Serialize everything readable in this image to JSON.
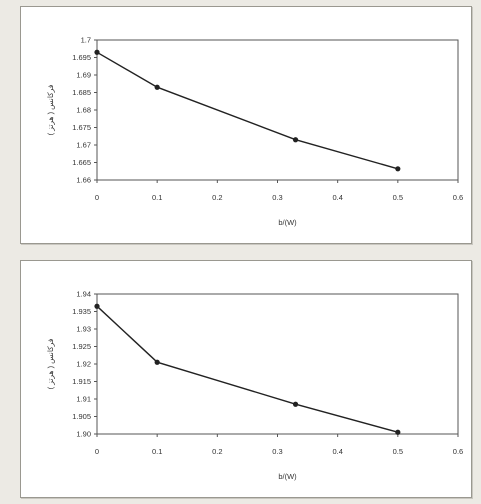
{
  "chart_data": [
    {
      "type": "line",
      "title": "",
      "xlabel": "b/(W)",
      "ylabel": "فركانس ( هرتز )",
      "xlim": [
        0,
        0.6
      ],
      "ylim": [
        1.66,
        1.7
      ],
      "x_ticks": [
        "0",
        "0.1",
        "0.2",
        "0.3",
        "0.4",
        "0.5",
        "0.6"
      ],
      "y_ticks": [
        "1.66",
        "1.665",
        "1.67",
        "1.675",
        "1.68",
        "1.685",
        "1.69",
        "1.695",
        "1.7"
      ],
      "grid": false,
      "legend": "none",
      "series": [
        {
          "x": [
            0,
            0.1,
            0.33,
            0.5
          ],
          "y": [
            1.6965,
            1.6865,
            1.6715,
            1.6632
          ]
        }
      ]
    },
    {
      "type": "line",
      "title": "",
      "xlabel": "b/(W)",
      "ylabel": "فركانس ( هرتز )",
      "xlim": [
        0,
        0.6
      ],
      "ylim": [
        1.9,
        1.94
      ],
      "x_ticks": [
        "0",
        "0.1",
        "0.2",
        "0.3",
        "0.4",
        "0.5",
        "0.6"
      ],
      "y_ticks": [
        "1.90",
        "1.905",
        "1.91",
        "1.915",
        "1.92",
        "1.925",
        "1.93",
        "1.935",
        "1.94"
      ],
      "grid": false,
      "legend": "none",
      "series": [
        {
          "x": [
            0,
            0.1,
            0.33,
            0.5
          ],
          "y": [
            1.9365,
            1.9205,
            1.9085,
            1.9005
          ]
        }
      ]
    }
  ]
}
